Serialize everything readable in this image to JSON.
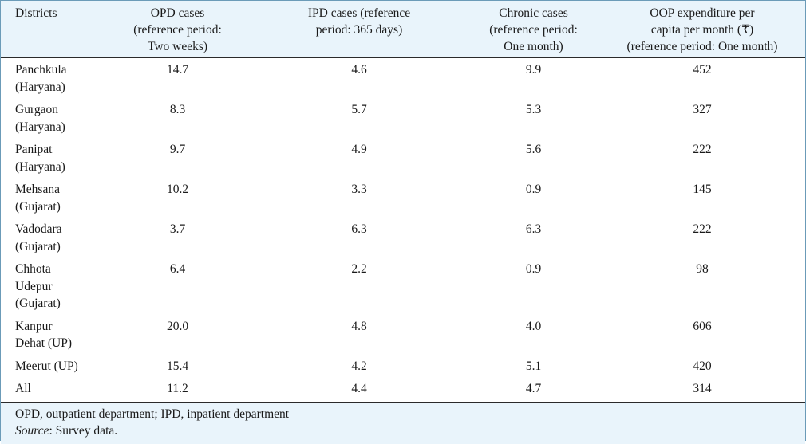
{
  "table": {
    "headers": [
      [
        "Districts"
      ],
      [
        "OPD cases",
        "(reference period:",
        "Two weeks)"
      ],
      [
        "IPD cases (reference",
        "period: 365 days)"
      ],
      [
        "Chronic cases",
        "(reference period:",
        "One month)"
      ],
      [
        "OOP expenditure per",
        "capita per month (₹)",
        "(reference period: One month)"
      ]
    ],
    "rows": [
      {
        "district": [
          "Panchkula",
          "(Haryana)"
        ],
        "opd": "14.7",
        "ipd": "4.6",
        "chronic": "9.9",
        "oop": "452"
      },
      {
        "district": [
          "Gurgaon",
          "(Haryana)"
        ],
        "opd": "8.3",
        "ipd": "5.7",
        "chronic": "5.3",
        "oop": "327"
      },
      {
        "district": [
          "Panipat",
          "(Haryana)"
        ],
        "opd": "9.7",
        "ipd": "4.9",
        "chronic": "5.6",
        "oop": "222"
      },
      {
        "district": [
          "Mehsana",
          "(Gujarat)"
        ],
        "opd": "10.2",
        "ipd": "3.3",
        "chronic": "0.9",
        "oop": "145"
      },
      {
        "district": [
          "Vadodara",
          "(Gujarat)"
        ],
        "opd": "3.7",
        "ipd": "6.3",
        "chronic": "6.3",
        "oop": "222"
      },
      {
        "district": [
          "Chhota",
          "Udepur",
          "(Gujarat)"
        ],
        "opd": "6.4",
        "ipd": "2.2",
        "chronic": "0.9",
        "oop": "98"
      },
      {
        "district": [
          "Kanpur",
          "Dehat (UP)"
        ],
        "opd": "20.0",
        "ipd": "4.8",
        "chronic": "4.0",
        "oop": "606"
      },
      {
        "district": [
          "Meerut (UP)"
        ],
        "opd": "15.4",
        "ipd": "4.2",
        "chronic": "5.1",
        "oop": "420"
      },
      {
        "district": [
          "All"
        ],
        "opd": "11.2",
        "ipd": "4.4",
        "chronic": "4.7",
        "oop": "314"
      }
    ]
  },
  "footer": {
    "abbreviations": "OPD, outpatient department; IPD, inpatient department",
    "source_label": "Source",
    "source_text": ": Survey data."
  }
}
